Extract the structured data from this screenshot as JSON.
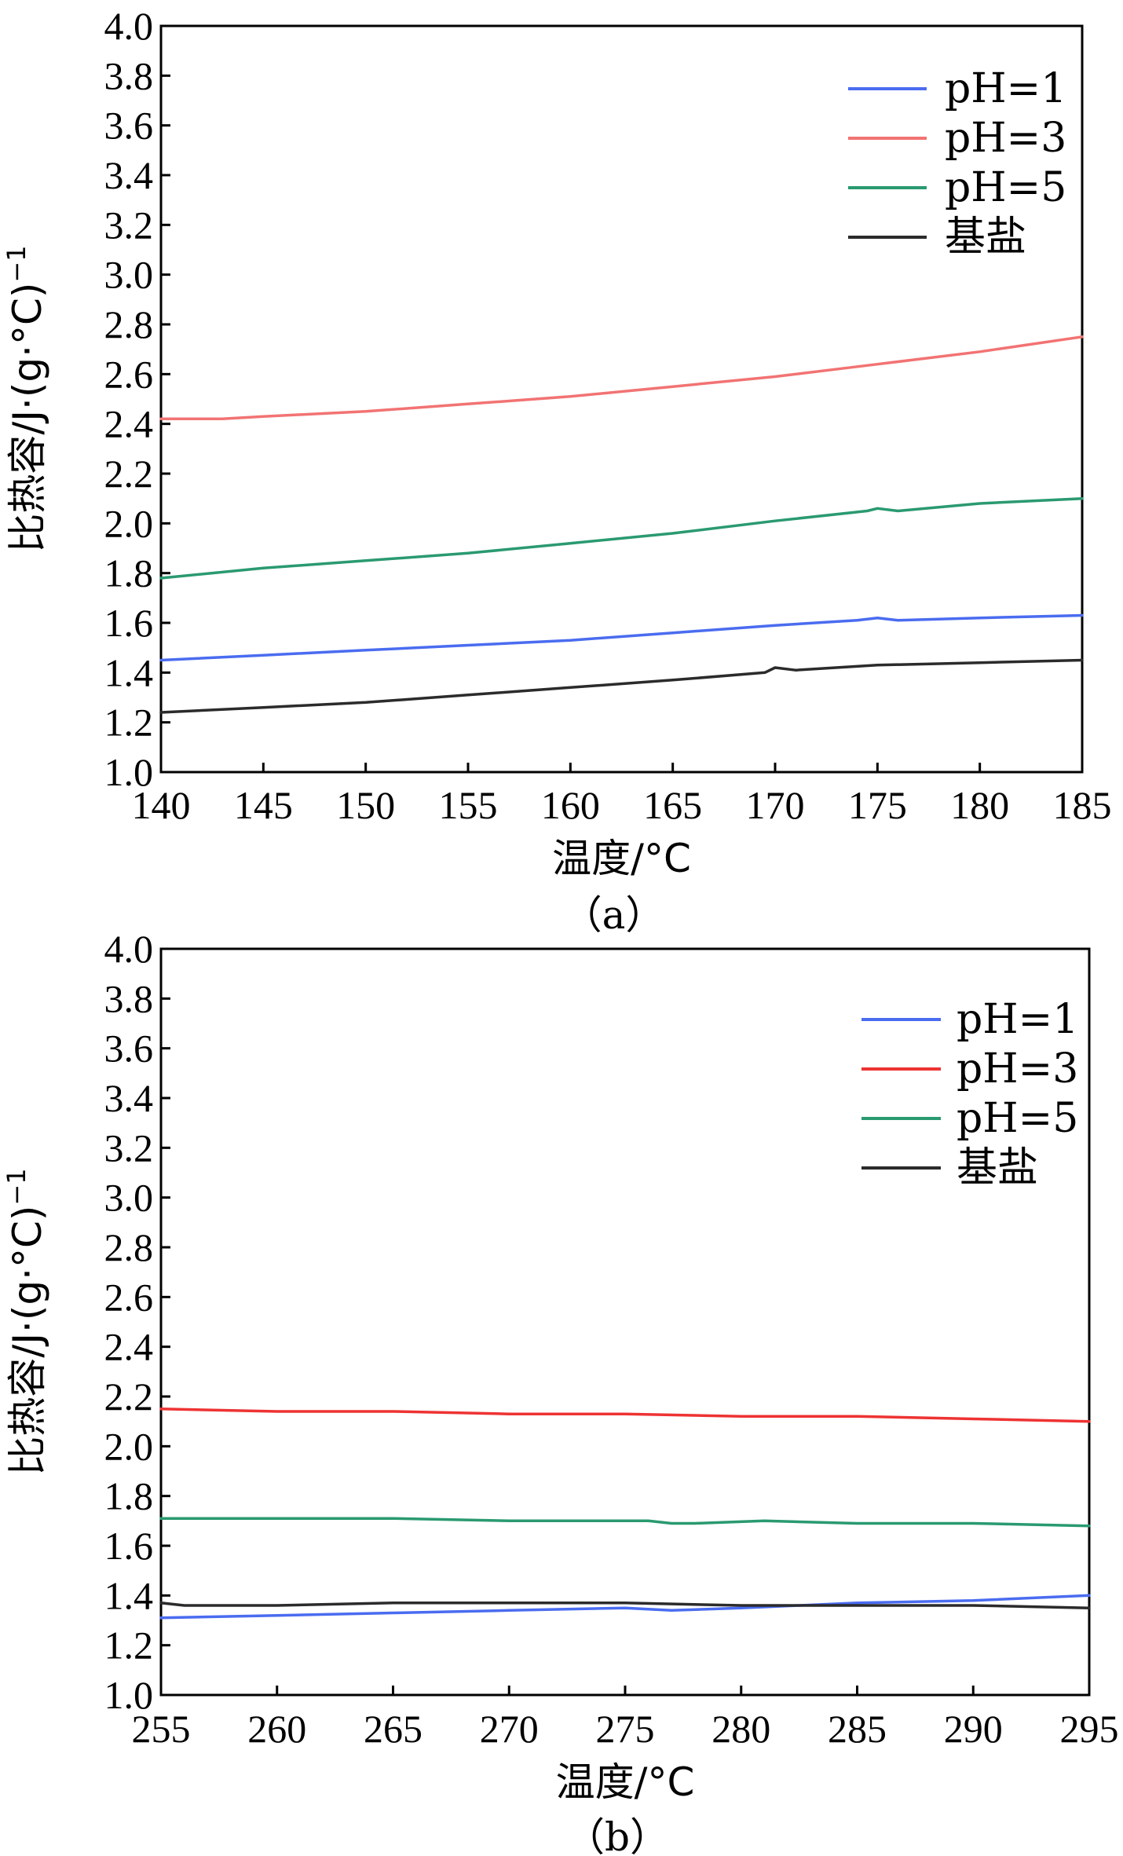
{
  "chart_data": [
    {
      "type": "line",
      "caption": "（a）",
      "xlabel": "温度/°C",
      "ylabel": "比热容/J·(g·°C)",
      "ylabel_superscript": "−1",
      "xlim": [
        140,
        185
      ],
      "ylim": [
        1.0,
        4.0
      ],
      "xticks": [
        "140",
        "145",
        "150",
        "155",
        "160",
        "165",
        "170",
        "175",
        "180",
        "185"
      ],
      "yticks": [
        "1.0",
        "1.2",
        "1.4",
        "1.6",
        "1.8",
        "2.0",
        "2.2",
        "2.4",
        "2.6",
        "2.8",
        "3.0",
        "3.2",
        "3.4",
        "3.6",
        "3.8",
        "4.0"
      ],
      "legend_position": "top-right",
      "series": [
        {
          "name": "pH=1",
          "color": "#4a6cf0",
          "x": [
            140,
            145,
            150,
            155,
            160,
            165,
            170,
            174,
            175,
            176,
            180,
            185
          ],
          "y": [
            1.45,
            1.47,
            1.49,
            1.51,
            1.53,
            1.56,
            1.59,
            1.61,
            1.62,
            1.61,
            1.62,
            1.63
          ]
        },
        {
          "name": "pH=3",
          "color": "#f27373",
          "x": [
            140,
            143,
            145,
            150,
            155,
            160,
            165,
            170,
            175,
            180,
            185
          ],
          "y": [
            2.42,
            2.42,
            2.43,
            2.45,
            2.48,
            2.51,
            2.55,
            2.59,
            2.64,
            2.69,
            2.75
          ]
        },
        {
          "name": "pH=5",
          "color": "#2a9a70",
          "x": [
            140,
            145,
            150,
            155,
            160,
            165,
            170,
            174.5,
            175,
            176,
            180,
            185
          ],
          "y": [
            1.78,
            1.82,
            1.85,
            1.88,
            1.92,
            1.96,
            2.01,
            2.05,
            2.06,
            2.05,
            2.08,
            2.1
          ]
        },
        {
          "name": "基盐",
          "color": "#2b2b2b",
          "x": [
            140,
            145,
            150,
            155,
            160,
            165,
            169.5,
            170,
            171,
            175,
            180,
            185
          ],
          "y": [
            1.24,
            1.26,
            1.28,
            1.31,
            1.34,
            1.37,
            1.4,
            1.42,
            1.41,
            1.43,
            1.44,
            1.45
          ]
        }
      ]
    },
    {
      "type": "line",
      "caption": "（b）",
      "xlabel": "温度/°C",
      "ylabel": "比热容/J·(g·°C)",
      "ylabel_superscript": "−1",
      "xlim": [
        255,
        295
      ],
      "ylim": [
        1.0,
        4.0
      ],
      "xticks": [
        "255",
        "260",
        "265",
        "270",
        "275",
        "280",
        "285",
        "290",
        "295"
      ],
      "yticks": [
        "1.0",
        "1.2",
        "1.4",
        "1.6",
        "1.8",
        "2.0",
        "2.2",
        "2.4",
        "2.6",
        "2.8",
        "3.0",
        "3.2",
        "3.4",
        "3.6",
        "3.8",
        "4.0"
      ],
      "legend_position": "top-right",
      "series": [
        {
          "name": "pH=1",
          "color": "#4a6cf0",
          "x": [
            255,
            260,
            265,
            270,
            275,
            277,
            280,
            285,
            290,
            295
          ],
          "y": [
            1.31,
            1.32,
            1.33,
            1.34,
            1.35,
            1.34,
            1.35,
            1.37,
            1.38,
            1.4
          ]
        },
        {
          "name": "pH=3",
          "color": "#ee3333",
          "x": [
            255,
            260,
            265,
            270,
            275,
            280,
            285,
            290,
            295
          ],
          "y": [
            2.15,
            2.14,
            2.14,
            2.13,
            2.13,
            2.12,
            2.12,
            2.11,
            2.1
          ]
        },
        {
          "name": "pH=5",
          "color": "#2a9a70",
          "x": [
            255,
            260,
            265,
            270,
            276,
            277,
            278,
            281,
            285,
            290,
            295
          ],
          "y": [
            1.71,
            1.71,
            1.71,
            1.7,
            1.7,
            1.69,
            1.69,
            1.7,
            1.69,
            1.69,
            1.68
          ]
        },
        {
          "name": "基盐",
          "color": "#2b2b2b",
          "x": [
            255,
            256,
            260,
            265,
            270,
            275,
            280,
            285,
            290,
            295
          ],
          "y": [
            1.37,
            1.36,
            1.36,
            1.37,
            1.37,
            1.37,
            1.36,
            1.36,
            1.36,
            1.35
          ]
        }
      ]
    }
  ]
}
